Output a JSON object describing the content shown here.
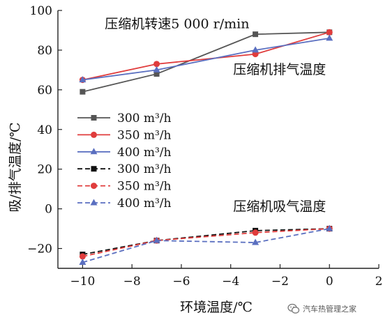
{
  "chart_data": {
    "type": "line",
    "xlabel": "环境温度/℃",
    "ylabel": "吸/排气温度/℃",
    "xlim": [
      -11,
      2
    ],
    "ylim": [
      -30,
      100
    ],
    "xticks": [
      "−10",
      "−8",
      "−6",
      "−4",
      "−2",
      "0",
      "2"
    ],
    "xtick_values": [
      -10,
      -8,
      -6,
      -4,
      -2,
      0,
      2
    ],
    "yticks": [
      "−20",
      "0",
      "20",
      "40",
      "60",
      "80",
      "100"
    ],
    "ytick_values": [
      -20,
      0,
      20,
      40,
      60,
      80,
      100
    ],
    "grid": false,
    "legend_position": "center-left",
    "x": [
      -10,
      -7,
      -3,
      0
    ],
    "annotations": [
      {
        "text": "压缩机转速5 000 r/min",
        "x": -9.1,
        "y": 91
      },
      {
        "text": "压缩机排气温度",
        "x": -3.9,
        "y": 68
      },
      {
        "text": "压缩机吸气温度",
        "x": -3.9,
        "y": -1
      }
    ],
    "series": [
      {
        "name": "300 m³/h",
        "group": "discharge",
        "color": "#555555",
        "marker": "square",
        "dash": "solid",
        "values": [
          59,
          68,
          88,
          89
        ]
      },
      {
        "name": "350 m³/h",
        "group": "discharge",
        "color": "#e03c3c",
        "marker": "circle",
        "dash": "solid",
        "values": [
          65,
          73,
          78,
          89
        ]
      },
      {
        "name": "400 m³/h",
        "group": "discharge",
        "color": "#5a6fc0",
        "marker": "triangle",
        "dash": "solid",
        "values": [
          65,
          70,
          80,
          86
        ]
      },
      {
        "name": "300 m³/h",
        "group": "suction",
        "color": "#111111",
        "marker": "square",
        "dash": "dashed",
        "values": [
          -23,
          -16,
          -11,
          -10
        ]
      },
      {
        "name": "350 m³/h",
        "group": "suction",
        "color": "#e03c3c",
        "marker": "circle",
        "dash": "dashed",
        "values": [
          -24,
          -16,
          -12,
          -10
        ]
      },
      {
        "name": "400 m³/h",
        "group": "suction",
        "color": "#5a6fc0",
        "marker": "triangle",
        "dash": "dashed",
        "values": [
          -27,
          -16,
          -17,
          -10
        ]
      }
    ]
  },
  "watermark": {
    "text": "汽车热管理之家",
    "icon": "wechat-icon"
  }
}
